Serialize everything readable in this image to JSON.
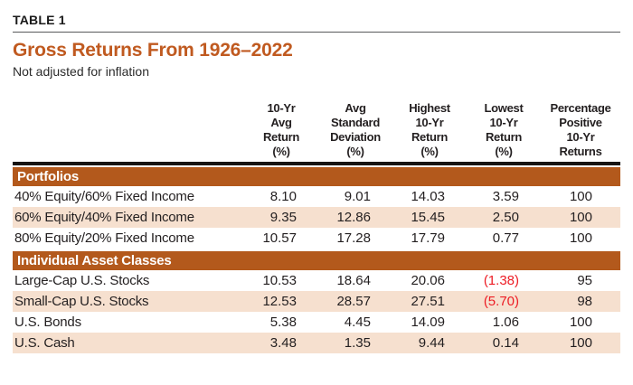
{
  "header": {
    "table_label": "TABLE 1",
    "title": "Gross Returns From 1926–2022",
    "subtitle": "Not adjusted for inflation"
  },
  "columns": [
    {
      "lines": [
        "10-Yr",
        "Avg",
        "Return",
        "(%)"
      ]
    },
    {
      "lines": [
        "Avg",
        "Standard",
        "Deviation",
        "(%)"
      ]
    },
    {
      "lines": [
        "Highest",
        "10-Yr",
        "Return",
        "(%)"
      ]
    },
    {
      "lines": [
        "Lowest",
        "10-Yr",
        "Return",
        "(%)"
      ]
    },
    {
      "lines": [
        "Percentage",
        "Positive",
        "10-Yr",
        "Returns"
      ]
    }
  ],
  "sections": [
    {
      "header": "Portfolios",
      "rows": [
        {
          "label": "40% Equity/60% Fixed Income",
          "values": [
            "8.10",
            "9.01",
            "14.03",
            "3.59",
            "100"
          ]
        },
        {
          "label": "60% Equity/40% Fixed Income",
          "values": [
            "9.35",
            "12.86",
            "15.45",
            "2.50",
            "100"
          ]
        },
        {
          "label": "80% Equity/20% Fixed Income",
          "values": [
            "10.57",
            "17.28",
            "17.79",
            "0.77",
            "100"
          ]
        }
      ]
    },
    {
      "header": "Individual Asset Classes",
      "rows": [
        {
          "label": "Large-Cap U.S. Stocks",
          "values": [
            "10.53",
            "18.64",
            "20.06",
            "(1.38)",
            "95"
          ],
          "negative_value_index": 3
        },
        {
          "label": "Small-Cap U.S. Stocks",
          "values": [
            "12.53",
            "28.57",
            "27.51",
            "(5.70)",
            "98"
          ],
          "negative_value_index": 3
        },
        {
          "label": "U.S. Bonds",
          "values": [
            "5.38",
            "4.45",
            "14.09",
            "1.06",
            "100"
          ]
        },
        {
          "label": "U.S. Cash",
          "values": [
            "3.48",
            "1.35",
            "9.44",
            "0.14",
            "100"
          ]
        }
      ]
    }
  ],
  "colors": {
    "title": "#c05a20",
    "bar": "#b3591c",
    "peach": "#f6e0cf",
    "negative": "#ed1c24",
    "rule": "#58595b",
    "thick_rule": "#161413",
    "text": "#231f20"
  }
}
